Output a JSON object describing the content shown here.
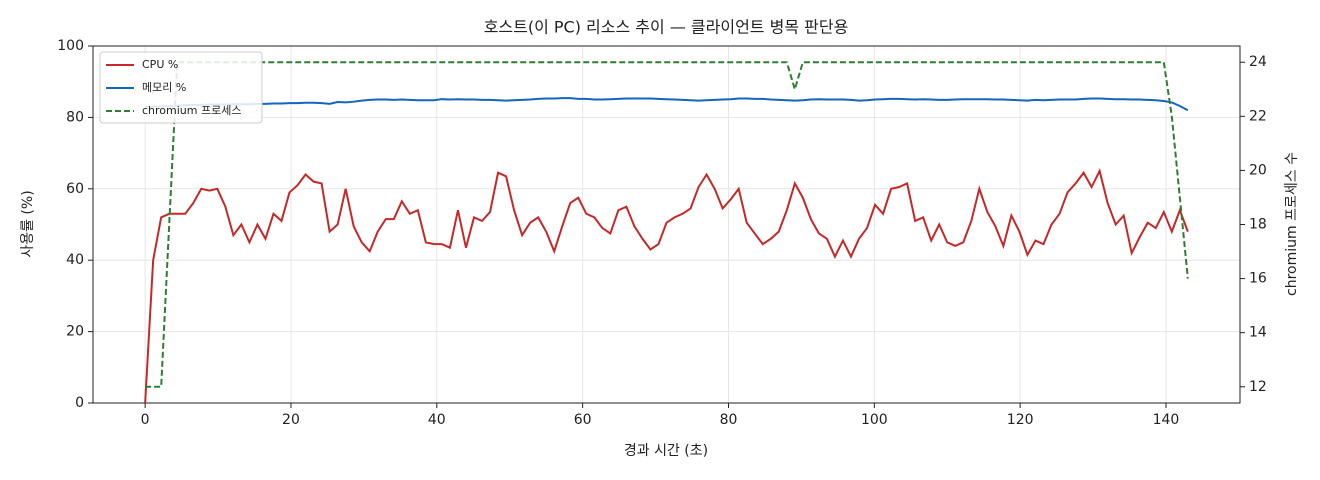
{
  "chart_data": {
    "type": "line",
    "title": "호스트(이 PC) 리소스 추이 — 클라이언트 병목 판단용",
    "xlabel": "경과 시간 (초)",
    "ylabel": "사용률 (%)",
    "y2label": "chromium 프로세스 수",
    "x": [
      0,
      1.1,
      2.2,
      3.3,
      4.4,
      5.5,
      6.6,
      7.7,
      8.8,
      9.9,
      11,
      12.1,
      13.2,
      14.3,
      15.4,
      16.5,
      17.6,
      18.7,
      19.8,
      20.9,
      22,
      23.1,
      24.2,
      25.3,
      26.4,
      27.5,
      28.6,
      29.7,
      30.8,
      31.9,
      33,
      34.1,
      35.2,
      36.3,
      37.4,
      38.5,
      39.6,
      40.7,
      41.8,
      42.9,
      44,
      45.1,
      46.2,
      47.3,
      48.4,
      49.5,
      50.6,
      51.7,
      52.8,
      53.9,
      55,
      56.1,
      57.2,
      58.3,
      59.4,
      60.5,
      61.6,
      62.7,
      63.8,
      64.9,
      66,
      67.1,
      68.2,
      69.3,
      70.4,
      71.5,
      72.6,
      73.7,
      74.8,
      75.9,
      77,
      78.1,
      79.2,
      80.3,
      81.4,
      82.5,
      83.6,
      84.7,
      85.8,
      86.9,
      88,
      89.1,
      90.2,
      91.3,
      92.4,
      93.5,
      94.6,
      95.7,
      96.8,
      97.9,
      99,
      100.1,
      101.2,
      102.3,
      103.4,
      104.5,
      105.6,
      106.7,
      107.8,
      108.9,
      110,
      111.1,
      112.2,
      113.3,
      114.4,
      115.5,
      116.6,
      117.7,
      118.8,
      119.9,
      121,
      122.1,
      123.2,
      124.3,
      125.4,
      126.5,
      127.6,
      128.7,
      129.8,
      130.9,
      132,
      133.1,
      134.2,
      135.3,
      136.4,
      137.5,
      138.6,
      139.7,
      140.8,
      141.9,
      143
    ],
    "series": [
      {
        "name": "CPU %",
        "color": "#c62828",
        "linestyle": "solid",
        "axis": "y",
        "values": [
          0,
          40,
          52,
          53,
          53,
          53,
          56,
          60,
          59.5,
          60,
          55,
          47,
          50,
          45,
          50,
          46,
          53,
          51,
          59,
          61,
          64,
          62,
          61.5,
          48,
          50,
          60,
          49.5,
          45,
          42.5,
          48,
          51.5,
          51.5,
          56.5,
          53,
          54,
          45,
          44.5,
          44.5,
          43.5,
          54,
          43.5,
          52,
          51,
          53.5,
          64.5,
          63.5,
          54,
          47,
          50.5,
          52,
          48,
          42.5,
          49.5,
          56,
          57.5,
          53,
          52,
          49,
          47.5,
          54,
          55,
          49.5,
          46,
          43,
          44.5,
          50.5,
          52,
          53,
          54.5,
          60.5,
          64,
          60,
          54.5,
          57,
          60,
          50.5,
          47.5,
          44.5,
          46,
          48,
          54,
          61.5,
          57.5,
          51.5,
          47.5,
          46,
          41,
          45.5,
          41,
          46,
          49,
          55.5,
          53,
          60,
          60.5,
          61.5,
          51,
          52,
          45.5,
          50,
          45,
          44,
          45,
          51,
          60,
          53.5,
          49.5,
          44,
          52.5,
          48,
          41.5,
          45.5,
          44.5,
          50,
          53,
          59,
          61.5,
          64.5,
          60.5,
          65,
          56,
          50,
          52.5,
          42,
          46.5,
          50.5,
          49,
          53.5,
          48,
          54,
          48
        ]
      },
      {
        "name": "메모리 %",
        "color": "#1565c0",
        "linestyle": "solid",
        "axis": "y",
        "values": [
          83,
          83,
          83.1,
          83.2,
          83.3,
          83.4,
          83.5,
          83.5,
          83.6,
          83.6,
          83.6,
          83.7,
          83.7,
          83.7,
          83.8,
          83.8,
          83.9,
          83.9,
          84,
          84,
          84.1,
          84.1,
          84,
          83.8,
          84.3,
          84.2,
          84.4,
          84.7,
          84.9,
          85,
          85,
          84.9,
          85,
          84.9,
          84.8,
          84.8,
          84.8,
          85.1,
          85,
          85.1,
          85,
          85,
          84.9,
          84.9,
          84.8,
          84.7,
          84.8,
          84.9,
          85,
          85.2,
          85.3,
          85.3,
          85.4,
          85.4,
          85.2,
          85.2,
          85,
          85,
          85.1,
          85.2,
          85.3,
          85.3,
          85.3,
          85.3,
          85.2,
          85.1,
          85,
          84.9,
          84.8,
          84.7,
          84.8,
          84.9,
          85,
          85.1,
          85.3,
          85.3,
          85.2,
          85.2,
          85,
          84.9,
          84.8,
          84.7,
          84.8,
          85,
          85.1,
          85,
          85,
          85,
          84.9,
          84.7,
          84.8,
          85,
          85.1,
          85.2,
          85.2,
          85.1,
          85,
          85.1,
          85,
          84.9,
          84.9,
          85,
          85.1,
          85.1,
          85.1,
          85.1,
          85,
          85,
          84.9,
          84.8,
          84.7,
          84.9,
          84.8,
          84.9,
          85,
          85,
          85,
          85.2,
          85.3,
          85.3,
          85.2,
          85.1,
          85.1,
          85,
          85,
          84.9,
          84.8,
          84.6,
          84.2,
          83.2,
          82
        ]
      },
      {
        "name": "chromium 프로세스",
        "color": "#2e7d32",
        "linestyle": "dashed",
        "axis": "y2",
        "values": [
          12,
          12,
          12,
          18,
          24,
          24,
          24,
          24,
          24,
          24,
          24,
          24,
          24,
          24,
          24,
          24,
          24,
          24,
          24,
          24,
          24,
          24,
          24,
          24,
          24,
          24,
          24,
          24,
          24,
          24,
          24,
          24,
          24,
          24,
          24,
          24,
          24,
          24,
          24,
          24,
          24,
          24,
          24,
          24,
          24,
          24,
          24,
          24,
          24,
          24,
          24,
          24,
          24,
          24,
          24,
          24,
          24,
          24,
          24,
          24,
          24,
          24,
          24,
          24,
          24,
          24,
          24,
          24,
          24,
          24,
          24,
          24,
          24,
          24,
          24,
          24,
          24,
          24,
          24,
          24,
          24,
          23,
          24,
          24,
          24,
          24,
          24,
          24,
          24,
          24,
          24,
          24,
          24,
          24,
          24,
          24,
          24,
          24,
          24,
          24,
          24,
          24,
          24,
          24,
          24,
          24,
          24,
          24,
          24,
          24,
          24,
          24,
          24,
          24,
          24,
          24,
          24,
          24,
          24,
          24,
          24,
          24,
          24,
          24,
          24,
          24,
          24,
          24,
          22,
          19,
          16
        ]
      }
    ],
    "xlim": [
      -7.15,
      150.15
    ],
    "xticks": [
      0,
      20,
      40,
      60,
      80,
      100,
      120,
      140
    ],
    "ylim": [
      0,
      100
    ],
    "yticks": [
      0,
      20,
      40,
      60,
      80,
      100
    ],
    "y2lim": [
      11.4,
      24.6
    ],
    "y2ticks": [
      12,
      14,
      16,
      18,
      20,
      22,
      24
    ],
    "grid": true,
    "legend": "upper left"
  }
}
